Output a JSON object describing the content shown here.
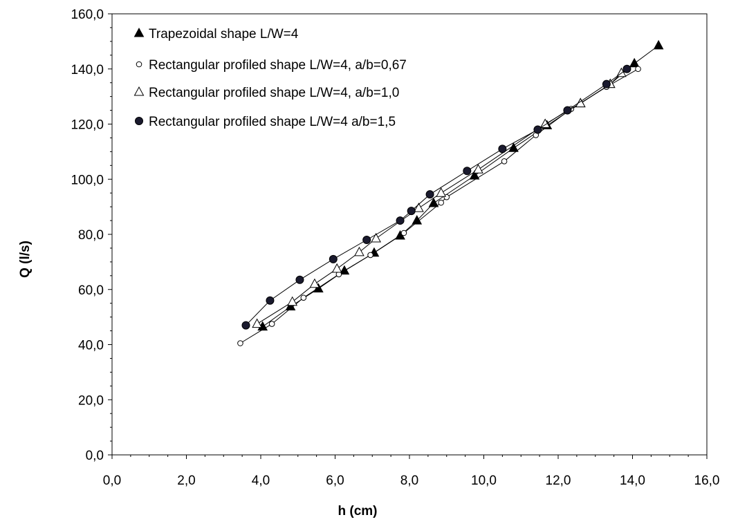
{
  "chart_data": {
    "type": "scatter",
    "title": "",
    "xlabel": "h (cm)",
    "ylabel": "Q (l/s)",
    "xlim": [
      0,
      16
    ],
    "ylim": [
      0,
      160
    ],
    "x_ticks": [
      "0,0",
      "2,0",
      "4,0",
      "6,0",
      "8,0",
      "10,0",
      "12,0",
      "14,0",
      "16,0"
    ],
    "y_ticks": [
      "0,0",
      "20,0",
      "40,0",
      "60,0",
      "80,0",
      "100,0",
      "120,0",
      "140,0",
      "160,0"
    ],
    "grid": false,
    "legend_position": "top-left",
    "series": [
      {
        "name": "Trapezoidal shape L/W=4",
        "marker": "filled-triangle",
        "color": "#000000",
        "points": [
          [
            4.05,
            46.5
          ],
          [
            4.8,
            53.8
          ],
          [
            5.55,
            60.3
          ],
          [
            6.25,
            66.8
          ],
          [
            7.05,
            73.3
          ],
          [
            7.75,
            79.5
          ],
          [
            8.2,
            85.0
          ],
          [
            8.65,
            91.3
          ],
          [
            9.75,
            101.3
          ],
          [
            10.8,
            111.3
          ],
          [
            11.7,
            119.5
          ],
          [
            12.6,
            127.5
          ],
          [
            13.4,
            134.5
          ],
          [
            14.05,
            142.0
          ],
          [
            14.7,
            148.5
          ]
        ]
      },
      {
        "name": "Rectangular profiled shape  L/W=4, a/b=0,67",
        "marker": "open-circle",
        "color": "#000000",
        "points": [
          [
            3.45,
            40.5
          ],
          [
            4.3,
            47.5
          ],
          [
            5.15,
            57.0
          ],
          [
            6.1,
            65.5
          ],
          [
            6.95,
            72.5
          ],
          [
            7.85,
            80.5
          ],
          [
            8.85,
            91.5
          ],
          [
            9.0,
            93.5
          ],
          [
            10.55,
            106.5
          ],
          [
            11.4,
            116.0
          ],
          [
            12.35,
            125.5
          ],
          [
            13.3,
            133.5
          ],
          [
            14.15,
            140.0
          ]
        ]
      },
      {
        "name": "Rectangular profiled shape  L/W=4, a/b=1,0",
        "marker": "open-triangle",
        "color": "#000000",
        "points": [
          [
            3.9,
            47.5
          ],
          [
            4.85,
            55.5
          ],
          [
            5.45,
            62.0
          ],
          [
            6.05,
            67.5
          ],
          [
            6.65,
            73.5
          ],
          [
            7.1,
            78.5
          ],
          [
            8.25,
            89.5
          ],
          [
            8.85,
            95.0
          ],
          [
            9.85,
            103.5
          ],
          [
            11.65,
            120.0
          ],
          [
            12.6,
            127.5
          ],
          [
            13.4,
            134.5
          ],
          [
            13.7,
            138.5
          ]
        ]
      },
      {
        "name": "Rectangular profiled shape  L/W=4 a/b=1,5",
        "marker": "filled-circle",
        "color": "#000000",
        "points": [
          [
            3.6,
            47.0
          ],
          [
            4.25,
            56.0
          ],
          [
            5.05,
            63.5
          ],
          [
            5.95,
            71.0
          ],
          [
            6.85,
            78.0
          ],
          [
            7.75,
            85.0
          ],
          [
            8.05,
            88.5
          ],
          [
            8.55,
            94.5
          ],
          [
            9.55,
            103.0
          ],
          [
            10.5,
            111.0
          ],
          [
            11.45,
            118.0
          ],
          [
            12.25,
            125.0
          ],
          [
            13.3,
            134.5
          ],
          [
            13.85,
            140.0
          ]
        ]
      }
    ]
  }
}
